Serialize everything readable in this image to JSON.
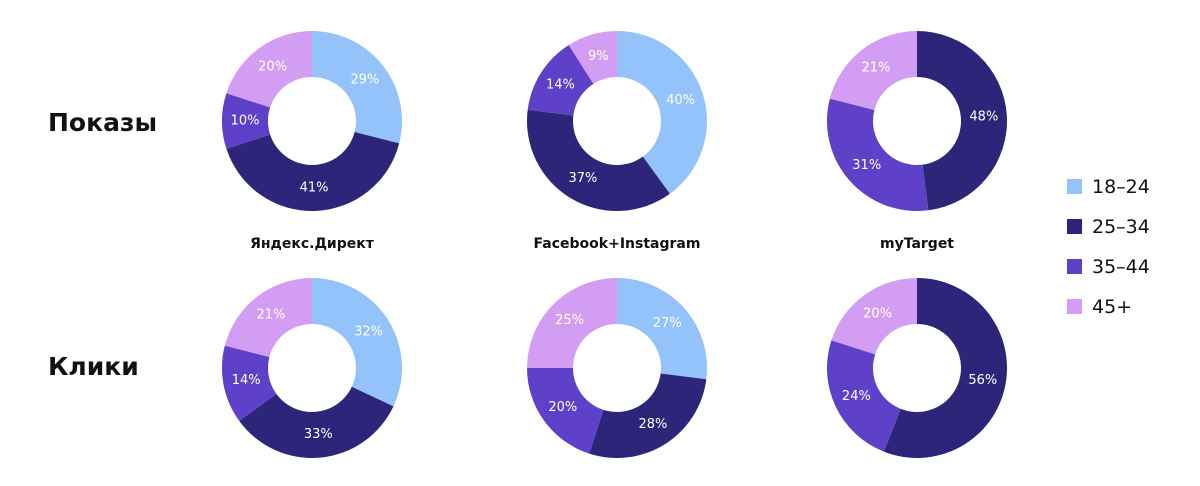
{
  "row_labels": [
    "Показы",
    "Клики"
  ],
  "platform_labels": [
    "Яндекс.Директ",
    "Facebook+Instagram",
    "myTarget"
  ],
  "legend": [
    {
      "label": "18–24",
      "color": "#94c2fb"
    },
    {
      "label": "25–34",
      "color": "#2d2579"
    },
    {
      "label": "35–44",
      "color": "#5f40c9"
    },
    {
      "label": "45+",
      "color": "#d49df4"
    }
  ],
  "chart_data": [
    {
      "type": "pie",
      "metric": "Показы",
      "platform": "Яндекс.Директ",
      "categories": [
        "18–24",
        "25–34",
        "35–44",
        "45+"
      ],
      "values": [
        29,
        41,
        10,
        20
      ],
      "unit": "%"
    },
    {
      "type": "pie",
      "metric": "Показы",
      "platform": "Facebook+Instagram",
      "categories": [
        "18–24",
        "25–34",
        "35–44",
        "45+"
      ],
      "values": [
        40,
        37,
        14,
        9
      ],
      "unit": "%"
    },
    {
      "type": "pie",
      "metric": "Показы",
      "platform": "myTarget",
      "categories": [
        "18–24",
        "25–34",
        "35–44",
        "45+"
      ],
      "values": [
        0,
        48,
        31,
        21
      ],
      "unit": "%"
    },
    {
      "type": "pie",
      "metric": "Клики",
      "platform": "Яндекс.Директ",
      "categories": [
        "18–24",
        "25–34",
        "35–44",
        "45+"
      ],
      "values": [
        32,
        33,
        14,
        21
      ],
      "unit": "%"
    },
    {
      "type": "pie",
      "metric": "Клики",
      "platform": "Facebook+Instagram",
      "categories": [
        "18–24",
        "25–34",
        "35–44",
        "45+"
      ],
      "values": [
        27,
        28,
        20,
        25
      ],
      "unit": "%"
    },
    {
      "type": "pie",
      "metric": "Клики",
      "platform": "myTarget",
      "categories": [
        "18–24",
        "25–34",
        "35–44",
        "45+"
      ],
      "values": [
        0,
        56,
        24,
        20
      ],
      "unit": "%"
    }
  ]
}
